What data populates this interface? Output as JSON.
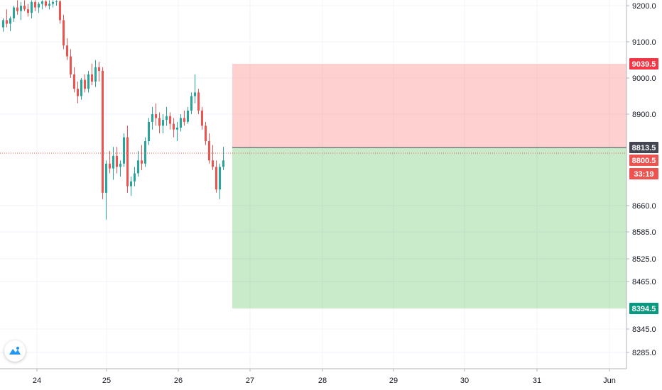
{
  "chart_data": {
    "type": "candlestick",
    "symbol_note": "",
    "price_axis": {
      "ticks": [
        "9200.0",
        "9100.0",
        "9000.0",
        "8900.0",
        "8660.0",
        "8585.0",
        "8525.0",
        "8465.0",
        "8345.0",
        "8285.0"
      ],
      "range": [
        8245,
        9215
      ]
    },
    "time_axis": {
      "ticks": [
        "24",
        "25",
        "26",
        "27",
        "28",
        "29",
        "30",
        "31",
        "Jun"
      ]
    },
    "candles": [
      [
        9140,
        9165,
        9128,
        9160
      ],
      [
        9160,
        9190,
        9140,
        9150
      ],
      [
        9150,
        9170,
        9130,
        9165
      ],
      [
        9165,
        9200,
        9155,
        9195
      ],
      [
        9195,
        9215,
        9175,
        9185
      ],
      [
        9185,
        9210,
        9160,
        9200
      ],
      [
        9200,
        9215,
        9185,
        9190
      ],
      [
        9190,
        9205,
        9170,
        9180
      ],
      [
        9180,
        9215,
        9165,
        9210
      ],
      [
        9210,
        9215,
        9185,
        9195
      ],
      [
        9195,
        9210,
        9180,
        9205
      ],
      [
        9205,
        9215,
        9190,
        9212
      ],
      [
        9212,
        9215,
        9195,
        9200
      ],
      [
        9200,
        9215,
        9190,
        9205
      ],
      [
        9205,
        9215,
        9195,
        9210
      ],
      [
        9210,
        9215,
        9200,
        9212
      ],
      [
        9212,
        9215,
        9150,
        9160
      ],
      [
        9160,
        9175,
        9080,
        9090
      ],
      [
        9090,
        9110,
        9050,
        9060
      ],
      [
        9060,
        9080,
        9000,
        9010
      ],
      [
        9010,
        9030,
        8960,
        8970
      ],
      [
        8970,
        8990,
        8930,
        8950
      ],
      [
        8950,
        9000,
        8940,
        8995
      ],
      [
        8995,
        9010,
        8960,
        8970
      ],
      [
        8970,
        9020,
        8960,
        9010
      ],
      [
        9010,
        9040,
        8980,
        8990
      ],
      [
        8990,
        9050,
        8975,
        9030
      ],
      [
        9030,
        9045,
        8990,
        9020
      ],
      [
        9020,
        9030,
        8680,
        8700
      ],
      [
        8700,
        8800,
        8620,
        8790
      ],
      [
        8790,
        8810,
        8760,
        8775
      ],
      [
        8775,
        8815,
        8740,
        8805
      ],
      [
        8805,
        8815,
        8760,
        8780
      ],
      [
        8780,
        8800,
        8750,
        8790
      ],
      [
        8790,
        8850,
        8780,
        8840
      ],
      [
        8840,
        8870,
        8700,
        8720
      ],
      [
        8720,
        8750,
        8690,
        8735
      ],
      [
        8735,
        8780,
        8720,
        8760
      ],
      [
        8760,
        8810,
        8750,
        8800
      ],
      [
        8800,
        8820,
        8770,
        8790
      ],
      [
        8790,
        8840,
        8780,
        8830
      ],
      [
        8830,
        8890,
        8820,
        8880
      ],
      [
        8880,
        8920,
        8860,
        8900
      ],
      [
        8900,
        8930,
        8870,
        8890
      ],
      [
        8890,
        8905,
        8850,
        8870
      ],
      [
        8870,
        8900,
        8850,
        8885
      ],
      [
        8885,
        8920,
        8870,
        8895
      ],
      [
        8895,
        8905,
        8860,
        8875
      ],
      [
        8875,
        8890,
        8840,
        8860
      ],
      [
        8860,
        8880,
        8830,
        8865
      ],
      [
        8865,
        8900,
        8855,
        8890
      ],
      [
        8890,
        8910,
        8870,
        8880
      ],
      [
        8880,
        8920,
        8875,
        8910
      ],
      [
        8910,
        8960,
        8900,
        8950
      ],
      [
        8950,
        9010,
        8930,
        8960
      ],
      [
        8960,
        8970,
        8900,
        8910
      ],
      [
        8910,
        8920,
        8860,
        8870
      ],
      [
        8870,
        8880,
        8820,
        8830
      ],
      [
        8830,
        8850,
        8790,
        8800
      ],
      [
        8800,
        8820,
        8770,
        8780
      ],
      [
        8780,
        8800,
        8700,
        8710
      ],
      [
        8710,
        8790,
        8680,
        8780
      ],
      [
        8780,
        8815,
        8770,
        8800
      ]
    ],
    "position": {
      "entry": "8813.5",
      "entry_value": 8813.5,
      "target": "8394.5",
      "target_value": 8394.5,
      "stop": "9039.5",
      "stop_value": 9039.5
    },
    "current_price": {
      "label": "8800.5",
      "value": 8800.5,
      "countdown": "33:19"
    }
  },
  "colors": {
    "up": "#26a69a",
    "down": "#ef5350",
    "stop_zone": "rgba(255,100,100,0.30)",
    "target_zone": "rgba(80,190,80,0.30)",
    "stop_tag": "#f23645",
    "target_tag": "#089981",
    "entry_tag": "#434651",
    "price_tag": "#ef5350",
    "grid": "#f0f3fa"
  },
  "logo_icon": "tradingview-cloud-icon"
}
